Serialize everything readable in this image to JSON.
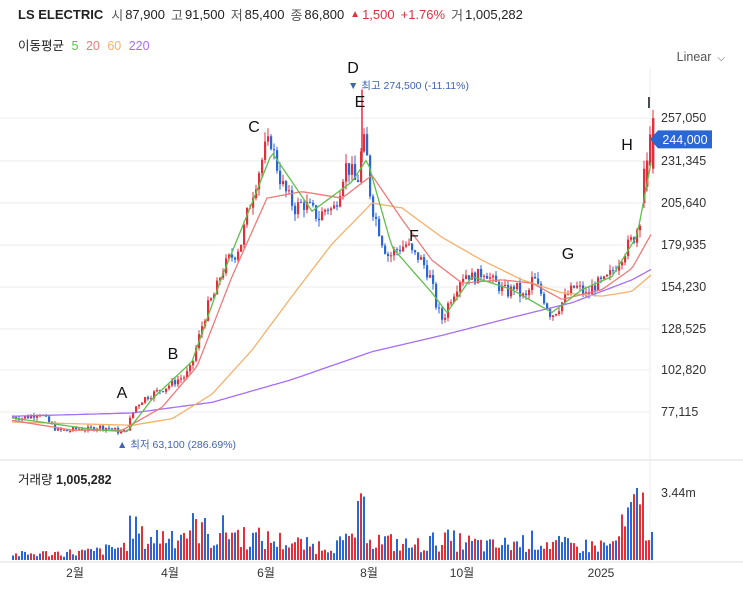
{
  "header": {
    "name": "LS ELECTRIC",
    "open_label": "시",
    "open": "87,900",
    "high_label": "고",
    "high": "91,500",
    "low_label": "저",
    "low": "85,400",
    "close_label": "종",
    "close": "86,800",
    "change": "1,500",
    "change_pct": "+1.76%",
    "volume_label": "거",
    "volume": "1,005,282"
  },
  "ma_legend": {
    "title": "이동평균",
    "periods": [
      "5",
      "20",
      "60",
      "220"
    ]
  },
  "scale_mode": "Linear",
  "volume_panel": {
    "title": "거래량",
    "value": "1,005,282",
    "axis_max_label": "3.44m"
  },
  "colors": {
    "up": "#e0313b",
    "down": "#2a67d6",
    "ma5": "#5fbf4a",
    "ma20": "#f07a7a",
    "ma60": "#f5b16b",
    "ma220": "#a66ef2",
    "badge": "#2a67d6",
    "annotation": "#3f63b5"
  },
  "chart_data": {
    "type": "candlestick",
    "y_ticks": [
      "257,050",
      "231,345",
      "205,640",
      "179,935",
      "154,230",
      "128,525",
      "102,820",
      "77,115"
    ],
    "y_range": [
      55000,
      282000
    ],
    "x_ticks": [
      "2월",
      "4월",
      "6월",
      "8월",
      "10월",
      "2025"
    ],
    "last_price_label": "244,000",
    "max_annotation": "최고 274,500 (-11.11%)",
    "min_annotation": "최저 63,100 (286.69%)",
    "wave_labels": [
      "A",
      "B",
      "C",
      "D",
      "E",
      "F",
      "G",
      "H",
      "I"
    ],
    "close_series": [
      [
        0,
        74000
      ],
      [
        10,
        73500
      ],
      [
        20,
        75000
      ],
      [
        26,
        77000
      ],
      [
        34,
        72000
      ],
      [
        44,
        66000
      ],
      [
        55,
        65500
      ],
      [
        65,
        67000
      ],
      [
        75,
        66500
      ],
      [
        85,
        68000
      ],
      [
        95,
        67500
      ],
      [
        102,
        66000
      ],
      [
        108,
        64500
      ],
      [
        113,
        65500
      ],
      [
        118,
        74000
      ],
      [
        122,
        80000
      ],
      [
        130,
        85000
      ],
      [
        142,
        89000
      ],
      [
        152,
        92000
      ],
      [
        165,
        97000
      ],
      [
        172,
        99000
      ],
      [
        178,
        104000
      ],
      [
        183,
        116000
      ],
      [
        188,
        128000
      ],
      [
        195,
        142000
      ],
      [
        202,
        150000
      ],
      [
        208,
        162000
      ],
      [
        215,
        170000
      ],
      [
        222,
        174000
      ],
      [
        228,
        181000
      ],
      [
        234,
        198000
      ],
      [
        240,
        212000
      ],
      [
        246,
        225000
      ],
      [
        252,
        238000
      ],
      [
        258,
        243000
      ],
      [
        262,
        232000
      ],
      [
        268,
        218000
      ],
      [
        274,
        210000
      ],
      [
        282,
        202000
      ],
      [
        290,
        205000
      ],
      [
        298,
        201000
      ],
      [
        306,
        196000
      ],
      [
        314,
        203000
      ],
      [
        320,
        200000
      ],
      [
        326,
        212000
      ],
      [
        332,
        228000
      ],
      [
        338,
        225000
      ],
      [
        344,
        215000
      ],
      [
        350,
        245000
      ],
      [
        354,
        232000
      ],
      [
        358,
        205000
      ],
      [
        364,
        193000
      ],
      [
        370,
        180000
      ],
      [
        376,
        172000
      ],
      [
        382,
        176000
      ],
      [
        388,
        178000
      ],
      [
        394,
        180000
      ],
      [
        400,
        173000
      ],
      [
        406,
        172000
      ],
      [
        412,
        166000
      ],
      [
        418,
        158000
      ],
      [
        424,
        140000
      ],
      [
        430,
        133000
      ],
      [
        436,
        145000
      ],
      [
        442,
        152000
      ],
      [
        448,
        160000
      ],
      [
        454,
        162000
      ],
      [
        460,
        159000
      ],
      [
        466,
        161000
      ],
      [
        472,
        164000
      ],
      [
        478,
        158000
      ],
      [
        484,
        155000
      ],
      [
        490,
        152000
      ],
      [
        496,
        150000
      ],
      [
        502,
        155000
      ],
      [
        508,
        148000
      ],
      [
        514,
        147000
      ],
      [
        520,
        160000
      ],
      [
        526,
        152000
      ],
      [
        532,
        145000
      ],
      [
        538,
        136000
      ],
      [
        544,
        140000
      ],
      [
        550,
        145000
      ],
      [
        556,
        150000
      ],
      [
        562,
        154000
      ],
      [
        568,
        152000
      ],
      [
        574,
        148000
      ],
      [
        580,
        154000
      ],
      [
        586,
        156000
      ],
      [
        592,
        157000
      ],
      [
        598,
        162000
      ],
      [
        604,
        168000
      ],
      [
        610,
        174000
      ],
      [
        616,
        180000
      ],
      [
        622,
        185000
      ],
      [
        628,
        198000
      ],
      [
        631,
        220000
      ],
      [
        634,
        228000
      ],
      [
        637,
        238000
      ],
      [
        640,
        244000
      ]
    ],
    "ma220_series": [
      [
        0,
        74500
      ],
      [
        120,
        76500
      ],
      [
        200,
        83000
      ],
      [
        280,
        97000
      ],
      [
        360,
        114000
      ],
      [
        430,
        124000
      ],
      [
        500,
        135000
      ],
      [
        560,
        144000
      ],
      [
        620,
        158000
      ],
      [
        641,
        165000
      ]
    ],
    "ma60_series": [
      [
        0,
        71000
      ],
      [
        120,
        69000
      ],
      [
        160,
        73000
      ],
      [
        200,
        88000
      ],
      [
        240,
        115000
      ],
      [
        280,
        148000
      ],
      [
        320,
        180000
      ],
      [
        360,
        205000
      ],
      [
        390,
        202000
      ],
      [
        430,
        184000
      ],
      [
        470,
        170000
      ],
      [
        510,
        158000
      ],
      [
        550,
        150000
      ],
      [
        590,
        148000
      ],
      [
        620,
        151000
      ],
      [
        641,
        162000
      ]
    ],
    "ma20_series": [
      [
        0,
        72000
      ],
      [
        60,
        66000
      ],
      [
        110,
        66000
      ],
      [
        150,
        80000
      ],
      [
        185,
        105000
      ],
      [
        220,
        160000
      ],
      [
        255,
        208000
      ],
      [
        290,
        212000
      ],
      [
        330,
        208000
      ],
      [
        360,
        222000
      ],
      [
        390,
        195000
      ],
      [
        420,
        170000
      ],
      [
        450,
        156000
      ],
      [
        490,
        158000
      ],
      [
        520,
        156000
      ],
      [
        550,
        146000
      ],
      [
        590,
        152000
      ],
      [
        620,
        165000
      ],
      [
        641,
        188000
      ]
    ],
    "ma5_series": [
      [
        0,
        73500
      ],
      [
        40,
        70000
      ],
      [
        80,
        66500
      ],
      [
        115,
        65000
      ],
      [
        140,
        85000
      ],
      [
        180,
        108000
      ],
      [
        210,
        160000
      ],
      [
        240,
        205000
      ],
      [
        260,
        236000
      ],
      [
        300,
        200000
      ],
      [
        340,
        218000
      ],
      [
        355,
        232000
      ],
      [
        380,
        178000
      ],
      [
        420,
        150000
      ],
      [
        435,
        138000
      ],
      [
        460,
        160000
      ],
      [
        500,
        152000
      ],
      [
        540,
        138000
      ],
      [
        570,
        152000
      ],
      [
        600,
        160000
      ],
      [
        625,
        185000
      ],
      [
        641,
        236000
      ]
    ],
    "volume_series": [
      [
        0,
        0.08
      ],
      [
        40,
        0.1
      ],
      [
        80,
        0.12
      ],
      [
        112,
        0.2
      ],
      [
        120,
        0.55
      ],
      [
        130,
        0.3
      ],
      [
        150,
        0.35
      ],
      [
        170,
        0.4
      ],
      [
        186,
        0.5
      ],
      [
        200,
        0.3
      ],
      [
        212,
        0.45
      ],
      [
        230,
        0.35
      ],
      [
        250,
        0.3
      ],
      [
        265,
        0.28
      ],
      [
        300,
        0.2
      ],
      [
        335,
        0.25
      ],
      [
        350,
        0.7
      ],
      [
        360,
        0.3
      ],
      [
        400,
        0.2
      ],
      [
        430,
        0.3
      ],
      [
        480,
        0.2
      ],
      [
        520,
        0.28
      ],
      [
        560,
        0.2
      ],
      [
        600,
        0.22
      ],
      [
        628,
        0.88
      ],
      [
        636,
        0.35
      ],
      [
        641,
        0.3
      ]
    ]
  }
}
